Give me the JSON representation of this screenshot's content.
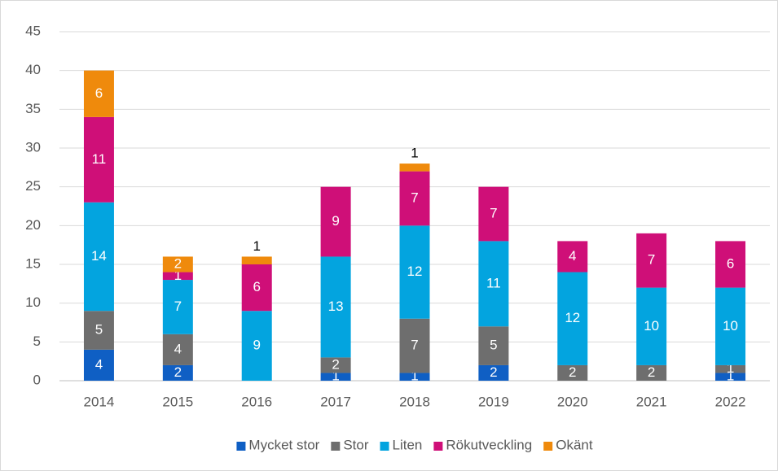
{
  "chart_data": {
    "type": "stacked_bar",
    "categories": [
      "2014",
      "2015",
      "2016",
      "2017",
      "2018",
      "2019",
      "2020",
      "2021",
      "2022"
    ],
    "series": [
      {
        "name": "Mycket stor",
        "color": "#0f5fc4",
        "values": [
          4,
          2,
          0,
          1,
          1,
          2,
          0,
          0,
          1
        ]
      },
      {
        "name": "Stor",
        "color": "#6e6e6e",
        "values": [
          5,
          4,
          0,
          2,
          7,
          5,
          2,
          2,
          1
        ]
      },
      {
        "name": "Liten",
        "color": "#03a4df",
        "values": [
          14,
          7,
          9,
          13,
          12,
          11,
          12,
          10,
          10
        ]
      },
      {
        "name": "Rökutveckling",
        "color": "#cf0f78",
        "values": [
          11,
          1,
          6,
          9,
          7,
          7,
          4,
          7,
          6
        ]
      },
      {
        "name": "Okänt",
        "color": "#ef8a0c",
        "values": [
          6,
          2,
          1,
          0,
          1,
          0,
          0,
          0,
          0
        ]
      }
    ],
    "ylim": [
      0,
      45
    ],
    "yticks": [
      0,
      5,
      10,
      15,
      20,
      25,
      30,
      35,
      40,
      45
    ],
    "grid": true,
    "legend": "bottom"
  }
}
